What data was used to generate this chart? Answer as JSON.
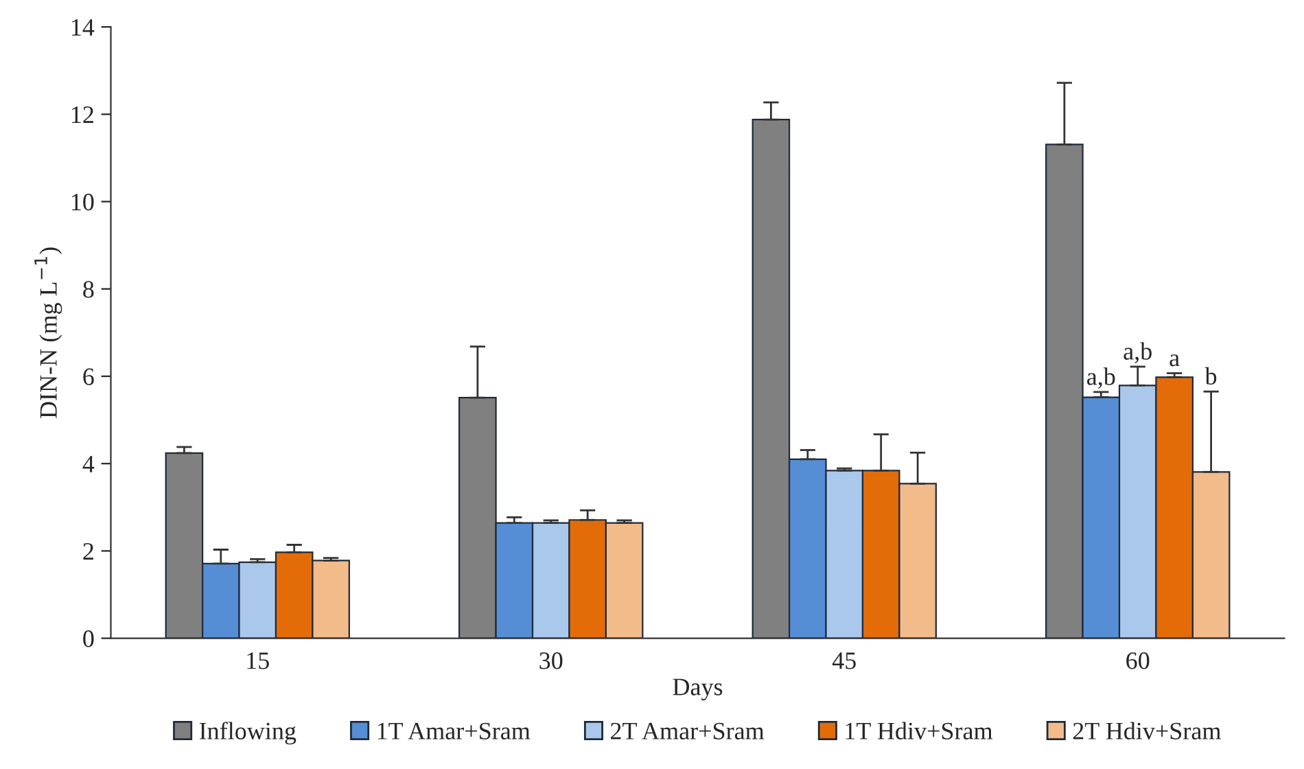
{
  "chart_data": {
    "type": "bar",
    "xlabel": "Days",
    "ylabel": "DIN-N (mg L$^{−1}$)",
    "categories": [
      "15",
      "30",
      "45",
      "60"
    ],
    "ylim": [
      0,
      14
    ],
    "yticks": [
      0,
      2,
      4,
      6,
      8,
      10,
      12,
      14
    ],
    "grid": false,
    "legend": "bottom",
    "series": [
      {
        "name": "Inflowing",
        "color": "#808080",
        "values": [
          4.24,
          5.51,
          11.88,
          11.31
        ],
        "errors": [
          [
            4.24,
            4.38
          ],
          [
            5.51,
            6.68
          ],
          [
            11.88,
            12.27
          ],
          [
            11.31,
            12.72
          ]
        ]
      },
      {
        "name": "1T Amar+Sram",
        "color": "#558ed5",
        "values": [
          1.71,
          2.64,
          4.1,
          5.52
        ],
        "errors": [
          [
            1.71,
            2.03
          ],
          [
            2.64,
            2.77
          ],
          [
            4.1,
            4.31
          ],
          [
            5.52,
            5.64
          ]
        ]
      },
      {
        "name": "2T Amar+Sram",
        "color": "#a9c8ec",
        "values": [
          1.74,
          2.64,
          3.84,
          5.79
        ],
        "errors": [
          [
            1.74,
            1.81
          ],
          [
            2.64,
            2.7
          ],
          [
            3.84,
            3.89
          ],
          [
            5.79,
            6.22
          ]
        ]
      },
      {
        "name": "1T Hdiv+Sram",
        "color": "#e36c09",
        "values": [
          1.97,
          2.71,
          3.84,
          5.98
        ],
        "errors": [
          [
            1.97,
            2.14
          ],
          [
            2.71,
            2.93
          ],
          [
            3.84,
            4.67
          ],
          [
            5.98,
            6.07
          ]
        ]
      },
      {
        "name": "2T Hdiv+Sram",
        "color": "#f2bb8a",
        "values": [
          1.78,
          2.64,
          3.54,
          3.81
        ],
        "errors": [
          [
            1.78,
            1.84
          ],
          [
            2.64,
            2.7
          ],
          [
            3.54,
            4.25
          ],
          [
            3.81,
            5.65
          ]
        ]
      }
    ],
    "annotations": [
      {
        "text": "a,b",
        "x": "60",
        "y": 5.64
      },
      {
        "text": "a,b",
        "x": "60",
        "y": 6.22
      },
      {
        "text": "a",
        "x": "60",
        "y": 6.07
      },
      {
        "text": "b",
        "x": "60",
        "y": 5.65
      }
    ]
  }
}
